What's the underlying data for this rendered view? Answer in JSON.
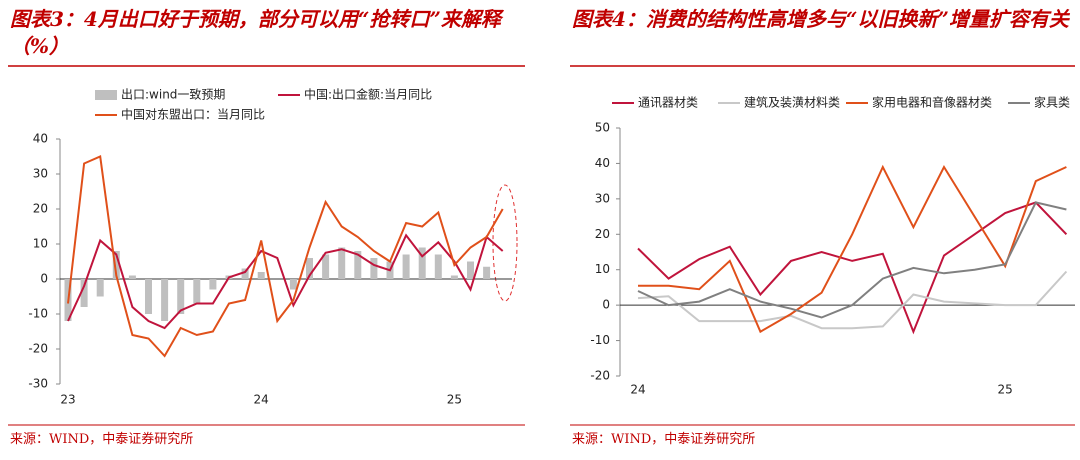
{
  "chart_data": [
    {
      "type": "combo",
      "title": "图表3：4月出口好于预期，部分可以用“抢转口”来解释（%）",
      "source": "来源：WIND，中泰证券研究所",
      "categories": [
        "23",
        null,
        null,
        null,
        null,
        null,
        null,
        null,
        null,
        null,
        null,
        null,
        "24",
        null,
        null,
        null,
        null,
        null,
        null,
        null,
        null,
        null,
        null,
        null,
        "25",
        null,
        null,
        null
      ],
      "ylim": [
        -30,
        40
      ],
      "yticks": [
        -30,
        -20,
        -10,
        0,
        10,
        20,
        30,
        40
      ],
      "series": [
        {
          "name": "出口:wind一致预期",
          "type": "bar",
          "color": "#bfbfbf",
          "values": [
            -12,
            -8,
            -5,
            8,
            1,
            -10,
            -12,
            -10,
            -7,
            -3,
            1,
            3,
            2,
            null,
            -3,
            6,
            7,
            9,
            8,
            6,
            5,
            7,
            9,
            7,
            1,
            5,
            3.5,
            null
          ]
        },
        {
          "name": "中国:出口金额:当月同比",
          "type": "line",
          "color": "#c0143c",
          "values": [
            -12,
            -2,
            11,
            7,
            -8,
            -12,
            -14,
            -9,
            -7,
            -7,
            0.5,
            2,
            8,
            6,
            -7.5,
            1,
            7.5,
            8.5,
            7,
            4,
            2.5,
            12.5,
            6.5,
            10.5,
            5,
            -3,
            12,
            8
          ]
        },
        {
          "name": "中国对东盟出口：当月同比",
          "type": "line",
          "color": "#e0501a",
          "values": [
            -7,
            33,
            35,
            1,
            -16,
            -17,
            -22,
            -14,
            -16,
            -15,
            -7,
            -6,
            11,
            -12,
            -6,
            9,
            22,
            15,
            12,
            8,
            5,
            16,
            15,
            19,
            4,
            9,
            12,
            20
          ]
        }
      ]
    },
    {
      "type": "line",
      "title": "图表4：消费的结构性高增多与“以旧换新”增量扩容有关",
      "source": "来源：WIND，中泰证券研究所",
      "categories": [
        "24",
        null,
        null,
        null,
        null,
        null,
        null,
        null,
        null,
        null,
        null,
        null,
        "25",
        null,
        null
      ],
      "ylim": [
        -20,
        50
      ],
      "yticks": [
        -20,
        -10,
        0,
        10,
        20,
        30,
        40,
        50
      ],
      "series": [
        {
          "name": "通讯器材类",
          "color": "#c0143c",
          "values": [
            16,
            7.5,
            13,
            16.5,
            3,
            12.5,
            15,
            12.5,
            14.5,
            -7.5,
            14,
            20,
            26,
            29,
            20
          ]
        },
        {
          "name": "建筑及装潢材料类",
          "color": "#c8c8c8",
          "values": [
            2,
            2.5,
            -4.5,
            -4.5,
            -4.5,
            -3,
            -6.5,
            -6.5,
            -6,
            3,
            1,
            0.5,
            0,
            0,
            9.5
          ]
        },
        {
          "name": "家用电器和音像器材类",
          "color": "#e0501a",
          "values": [
            5.5,
            5.5,
            4.5,
            12.5,
            -7.5,
            -2.5,
            3.5,
            20,
            39,
            22,
            39,
            25,
            11,
            35,
            39
          ]
        },
        {
          "name": "家具类",
          "color": "#808080",
          "values": [
            4,
            0,
            1,
            4.5,
            1,
            -1,
            -3.5,
            0,
            7.5,
            10.5,
            9,
            10,
            11.5,
            29,
            27
          ]
        }
      ]
    }
  ]
}
